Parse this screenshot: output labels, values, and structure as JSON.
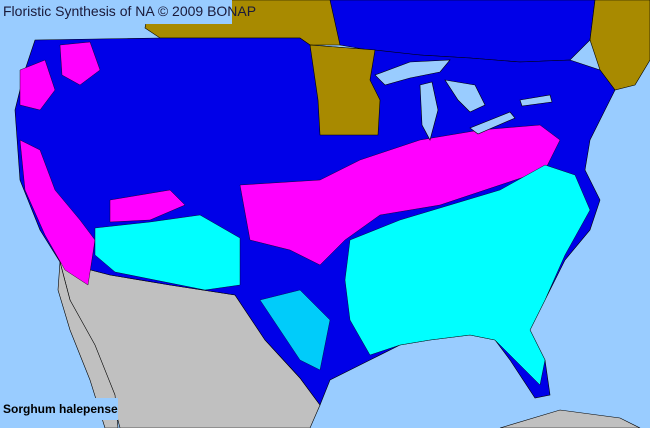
{
  "title": "Floristic Synthesis of NA © 2009 BONAP",
  "species": "Sorghum halepense",
  "colors": {
    "ocean": "#99ccff",
    "canada_not_in_scope": "#a88a00",
    "present_native_state": "#0000e8",
    "present_county_cyan": "#00ffff",
    "present_county_magenta": "#ff00ff",
    "mexico": "#c0c0c0",
    "boundaries": "#000000"
  }
}
